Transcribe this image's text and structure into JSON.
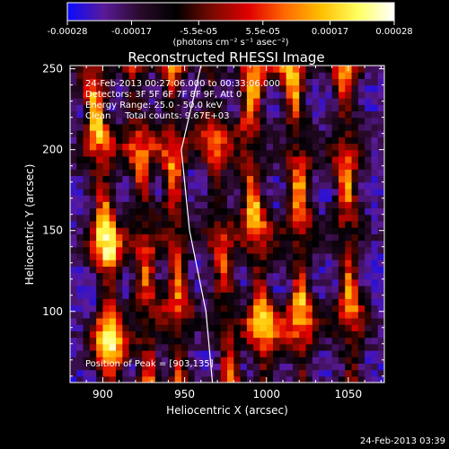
{
  "colorbar": {
    "ticks": [
      "-0.00028",
      "-0.00017",
      "-5.5e-05",
      "5.5e-05",
      "0.00017",
      "0.00028"
    ],
    "tick_values": [
      -0.00028,
      -0.00017,
      -5.5e-05,
      5.5e-05,
      0.00017,
      0.00028
    ],
    "range": [
      -0.00028,
      0.00028
    ],
    "label": "(photons cm⁻² s⁻¹ asec⁻²)",
    "colors": [
      "#0a0aff",
      "#5a1a9a",
      "#2a0a2a",
      "#000000",
      "#7a0a00",
      "#e00000",
      "#ff6a00",
      "#ffc000",
      "#ffff60",
      "#ffffff"
    ]
  },
  "chart_data": {
    "type": "heatmap",
    "title": "Reconstructed RHESSI Image",
    "xlabel": "Heliocentric X (arcsec)",
    "ylabel": "Heliocentric Y (arcsec)",
    "xlim": [
      880,
      1072
    ],
    "ylim": [
      56,
      252
    ],
    "xticks": [
      900,
      950,
      1000,
      1050
    ],
    "yticks": [
      100,
      150,
      200,
      250
    ],
    "annotations": [
      "24-Feb-2013 00:27:06.000 to 00:33:06.000",
      "Detectors: 3F 5F 6F 7F 8F 9F, Att 0",
      "Energy Range: 25.0 - 50.0 keV",
      "Clean     Total counts: 9.67E+03"
    ],
    "peak_label": "Position of Peak = [903,135]",
    "peak": [
      903,
      135
    ],
    "limb": [
      [
        960,
        252
      ],
      [
        948,
        200
      ],
      [
        953,
        150
      ],
      [
        963,
        100
      ],
      [
        967,
        56
      ]
    ],
    "ridges": [
      {
        "x": [
          [
            893,
            252
          ],
          [
            898,
            200
          ],
          [
            903,
            135
          ],
          [
            905,
            56
          ]
        ],
        "amp": 1.0
      },
      {
        "x": [
          [
            918,
            252
          ],
          [
            922,
            200
          ],
          [
            926,
            150
          ],
          [
            928,
            56
          ]
        ],
        "amp": 0.7
      },
      {
        "x": [
          [
            942,
            252
          ],
          [
            942,
            200
          ],
          [
            945,
            150
          ],
          [
            947,
            56
          ]
        ],
        "amp": 0.75
      },
      {
        "x": [
          [
            965,
            252
          ],
          [
            968,
            200
          ],
          [
            972,
            150
          ],
          [
            978,
            56
          ]
        ],
        "amp": 0.65
      },
      {
        "x": [
          [
            993,
            252
          ],
          [
            988,
            200
          ],
          [
            994,
            150
          ],
          [
            1000,
            56
          ]
        ],
        "amp": 0.9
      },
      {
        "x": [
          [
            1015,
            252
          ],
          [
            1020,
            200
          ],
          [
            1020,
            150
          ],
          [
            1022,
            56
          ]
        ],
        "amp": 0.85
      },
      {
        "x": [
          [
            1048,
            252
          ],
          [
            1048,
            200
          ],
          [
            1050,
            150
          ],
          [
            1052,
            56
          ]
        ],
        "amp": 0.8
      }
    ]
  },
  "timestamp": "24-Feb-2013 03:39"
}
